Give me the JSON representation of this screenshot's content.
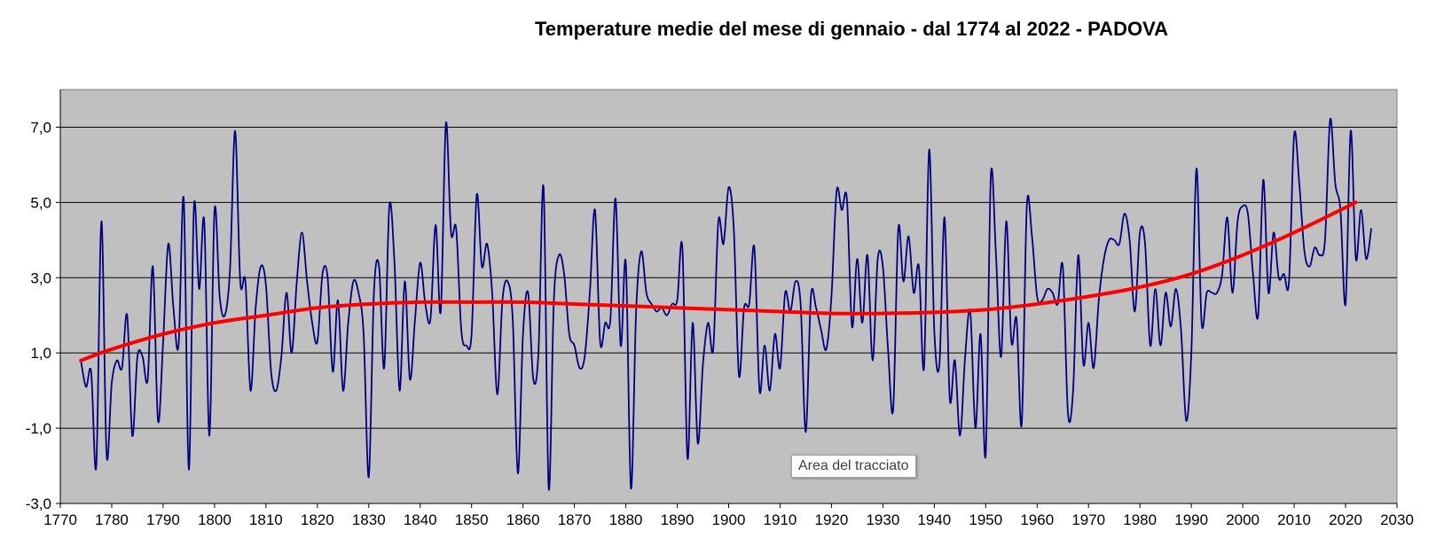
{
  "chart_data": {
    "type": "line",
    "title": "Temperature medie del mese di gennaio - dal  1774 al 2022 - PADOVA",
    "xlabel": "",
    "ylabel": "",
    "xlim": [
      1770,
      2030
    ],
    "ylim": [
      -3,
      8
    ],
    "x_ticks": [
      1770,
      1780,
      1790,
      1800,
      1810,
      1820,
      1830,
      1840,
      1850,
      1860,
      1870,
      1880,
      1890,
      1900,
      1910,
      1920,
      1930,
      1940,
      1950,
      1960,
      1970,
      1980,
      1990,
      2000,
      2010,
      2020,
      2030
    ],
    "y_ticks": [
      {
        "value": -3,
        "label": "-3,0"
      },
      {
        "value": -1,
        "label": "-1,0"
      },
      {
        "value": 1,
        "label": "1,0"
      },
      {
        "value": 3,
        "label": "3,0"
      },
      {
        "value": 5,
        "label": "5,0"
      },
      {
        "value": 7,
        "label": "7,0"
      }
    ],
    "grid": "horizontal",
    "plot_background": "#c0c0c0",
    "legend": "none",
    "series": [
      {
        "color": "#000080",
        "x_start": 1774,
        "x_step": 1,
        "values": [
          0.8,
          0.1,
          0.5,
          -2.0,
          4.5,
          -1.7,
          0.2,
          0.8,
          0.6,
          2.0,
          -1.2,
          0.9,
          0.9,
          0.3,
          3.3,
          -0.8,
          1.3,
          3.9,
          2.2,
          1.2,
          5.1,
          -2.1,
          4.9,
          2.7,
          4.5,
          -1.2,
          4.8,
          2.5,
          2.0,
          3.2,
          6.9,
          2.9,
          2.9,
          0.0,
          2.2,
          3.3,
          2.8,
          0.5,
          0.0,
          0.9,
          2.6,
          1.0,
          2.9,
          4.2,
          2.9,
          1.8,
          1.3,
          3.1,
          3.0,
          0.5,
          2.4,
          0.0,
          1.8,
          2.9,
          2.6,
          1.5,
          -2.3,
          2.6,
          3.3,
          0.6,
          4.9,
          3.4,
          0.0,
          2.9,
          0.3,
          1.9,
          3.4,
          2.3,
          1.9,
          4.4,
          2.1,
          7.1,
          4.2,
          4.3,
          1.6,
          1.2,
          1.5,
          5.2,
          3.3,
          3.9,
          2.6,
          -0.1,
          2.4,
          2.9,
          1.9,
          -2.2,
          1.5,
          2.6,
          0.3,
          1.0,
          5.4,
          -2.6,
          2.4,
          3.6,
          3.1,
          1.5,
          1.2,
          0.6,
          0.9,
          2.6,
          4.8,
          1.3,
          1.8,
          1.9,
          5.1,
          1.2,
          3.4,
          -2.6,
          2.1,
          3.7,
          2.6,
          2.3,
          2.1,
          2.2,
          2.0,
          2.3,
          2.4,
          3.8,
          -1.8,
          1.8,
          -1.4,
          0.7,
          1.8,
          1.1,
          4.5,
          3.9,
          5.4,
          4.3,
          0.4,
          2.2,
          2.3,
          3.8,
          0.0,
          1.2,
          0.0,
          1.5,
          0.6,
          2.6,
          2.1,
          2.9,
          2.3,
          -1.1,
          2.5,
          2.2,
          1.6,
          1.1,
          2.5,
          5.3,
          4.8,
          5.1,
          1.7,
          3.5,
          1.8,
          3.6,
          0.8,
          3.5,
          3.3,
          1.1,
          -0.5,
          4.3,
          2.9,
          4.1,
          2.6,
          3.3,
          0.6,
          6.4,
          1.6,
          0.7,
          4.6,
          -0.2,
          0.8,
          -1.2,
          0.9,
          2.1,
          -1.0,
          1.5,
          -1.7,
          5.7,
          3.6,
          0.9,
          4.5,
          1.3,
          1.9,
          -0.9,
          4.9,
          4.1,
          2.5,
          2.4,
          2.7,
          2.6,
          2.3,
          3.3,
          -0.6,
          0.0,
          3.6,
          0.7,
          1.8,
          0.6,
          2.4,
          3.5,
          4.0,
          4.0,
          3.9,
          4.7,
          4.0,
          2.1,
          4.2,
          3.9,
          1.2,
          2.7,
          1.2,
          2.6,
          1.7,
          2.7,
          1.6,
          -0.8,
          1.0,
          5.9,
          1.8,
          2.6,
          2.6,
          2.6,
          3.1,
          4.6,
          2.6,
          4.5,
          4.9,
          4.7,
          3.1,
          2.0,
          5.6,
          2.6,
          4.2,
          3.0,
          3.1,
          2.9,
          6.8,
          5.5,
          3.7,
          3.3,
          3.8,
          3.6,
          4.0,
          7.2,
          5.5,
          4.8,
          2.3,
          6.9,
          3.5,
          4.8,
          3.5,
          4.3
        ]
      },
      {
        "color": "#ff0000",
        "type": "trend",
        "x": [
          1774,
          1780,
          1790,
          1800,
          1810,
          1820,
          1830,
          1840,
          1850,
          1860,
          1870,
          1880,
          1890,
          1900,
          1910,
          1920,
          1930,
          1940,
          1950,
          1960,
          1970,
          1980,
          1990,
          2000,
          2010,
          2022
        ],
        "values": [
          0.8,
          1.1,
          1.5,
          1.8,
          2.0,
          2.2,
          2.3,
          2.35,
          2.35,
          2.35,
          2.3,
          2.25,
          2.2,
          2.15,
          2.1,
          2.05,
          2.05,
          2.08,
          2.15,
          2.3,
          2.5,
          2.75,
          3.1,
          3.6,
          4.2,
          5.0
        ]
      }
    ],
    "annotations": [
      {
        "text": "Area del tracciato"
      }
    ]
  }
}
